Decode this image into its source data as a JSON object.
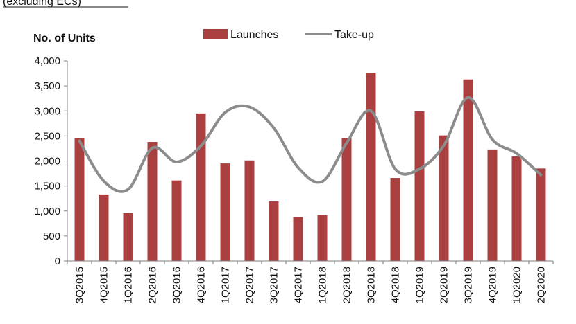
{
  "header": {
    "title_fragment": "(excluding ECs)"
  },
  "colors": {
    "bar": "#A93F3E",
    "line": "#8C8C8C",
    "axis": "#7F7F7F",
    "text": "#111111"
  },
  "chart_data": {
    "type": "bar",
    "ylabel": "No. of Units",
    "ylim": [
      0,
      4000
    ],
    "yticks": [
      "4,000",
      "3,500",
      "3,000",
      "2,500",
      "2,000",
      "1,500",
      "1,000",
      "500",
      "0"
    ],
    "ytick_values": [
      4000,
      3500,
      3000,
      2500,
      2000,
      1500,
      1000,
      500,
      0
    ],
    "grid": false,
    "legend_position": "top",
    "categories": [
      "3Q2015",
      "4Q2015",
      "1Q2016",
      "2Q2016",
      "3Q2016",
      "4Q2016",
      "1Q2017",
      "2Q2017",
      "3Q2017",
      "4Q2017",
      "1Q2018",
      "2Q2018",
      "3Q2018",
      "4Q2018",
      "1Q2019",
      "2Q2019",
      "3Q2019",
      "4Q2019",
      "1Q2020",
      "2Q2020"
    ],
    "series": [
      {
        "name": "Launches",
        "type": "bar",
        "values": [
          2450,
          1330,
          960,
          2380,
          1610,
          2950,
          1950,
          2010,
          1190,
          880,
          920,
          2450,
          3760,
          1660,
          2990,
          2510,
          3630,
          2230,
          2090,
          1850
        ]
      },
      {
        "name": "Take-up",
        "type": "line",
        "values": [
          2400,
          1600,
          1430,
          2260,
          1980,
          2300,
          2970,
          3080,
          2660,
          1870,
          1590,
          2360,
          3000,
          1840,
          1840,
          2310,
          3270,
          2430,
          2150,
          1720
        ]
      }
    ]
  }
}
